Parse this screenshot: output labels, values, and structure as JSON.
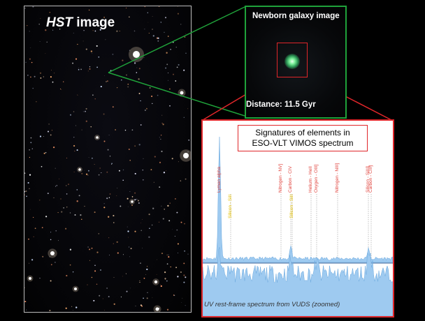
{
  "hst_panel": {
    "title_italic": "HST",
    "title_rest": " image"
  },
  "zoom_panel": {
    "title": "Newborn galaxy image",
    "distance": "Distance: 11.5 Gyr"
  },
  "spectrum_panel": {
    "title_line1": "Signatures of elements in",
    "title_line2": "ESO-VLT VIMOS spectrum",
    "caption": "UV rest-frame spectrum from VUDS (zoomed)",
    "lines": [
      {
        "label": "Lyman alpha",
        "color": "#e0443e"
      },
      {
        "label": "Silicon - SiII",
        "color": "#e5c100"
      },
      {
        "label": "Nitrogen - NV]",
        "color": "#e0443e"
      },
      {
        "label": "Carbon - CIV",
        "color": "#e0443e"
      },
      {
        "label": "Silicon - SiII",
        "color": "#e5c100"
      },
      {
        "label": "Helium - HeII",
        "color": "#e0443e"
      },
      {
        "label": "Oxygen - OIII]",
        "color": "#e0443e"
      },
      {
        "label": "Nitrogen - NIII]",
        "color": "#e0443e"
      },
      {
        "label": "Silicon - SiIII]",
        "color": "#e0443e"
      },
      {
        "label": "Carbon - CIII]",
        "color": "#e0443e"
      }
    ]
  },
  "colors": {
    "hst_border": "#bcbcbc",
    "zoom_border": "#1fa23a",
    "spectrum_border": "#e0262a",
    "spectrum_fill": "#9ecaf0"
  }
}
